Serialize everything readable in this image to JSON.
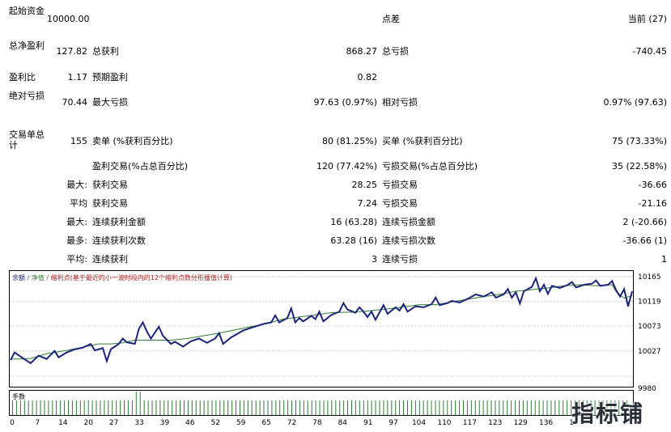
{
  "report": {
    "initial_deposit_label": "起始资金",
    "initial_deposit_value": "10000.00",
    "spread_label": "点差",
    "spread_value": "当前 (27)",
    "net_profit_label": "总净盈利",
    "net_profit_value": "127.82",
    "gross_profit_label": "总获利",
    "gross_profit_value": "868.27",
    "gross_loss_label": "总亏损",
    "gross_loss_value": "-740.45",
    "profit_factor_label": "盈利比",
    "profit_factor_value": "1.17",
    "expected_payoff_label": "预期盈利",
    "expected_payoff_value": "0.82",
    "abs_drawdown_label": "绝对亏损",
    "abs_drawdown_value": "70.44",
    "max_drawdown_label": "最大亏损",
    "max_drawdown_value": "97.63 (0.97%)",
    "rel_drawdown_label": "相对亏损",
    "rel_drawdown_value": "0.97% (97.63)",
    "total_trades_label": "交易单总计",
    "total_trades_value": "155",
    "short_label": "卖单 (%获利百分比)",
    "short_value": "80 (81.25%)",
    "long_label": "买单 (%获利百分比)",
    "long_value": "75 (73.33%)",
    "profit_trades_label": "盈利交易(%占总百分比)",
    "profit_trades_value": "120 (77.42%)",
    "loss_trades_label": "亏损交易(%占总百分比)",
    "loss_trades_value": "35 (22.58%)",
    "largest_label": "最大:",
    "largest_profit_label": "获利交易",
    "largest_profit_value": "28.25",
    "largest_loss_label": "亏损交易",
    "largest_loss_value": "-36.66",
    "average_label": "平均",
    "average_profit_label": "获利交易",
    "average_profit_value": "7.24",
    "average_loss_label": "亏损交易",
    "average_loss_value": "-21.16",
    "max_cons_label": "最大:",
    "max_cons_wins_label": "连续获利金额",
    "max_cons_wins_value": "16 (63.28)",
    "max_cons_losses_label": "连续亏损金额",
    "max_cons_losses_value": "2 (-20.66)",
    "max_cons_count_label": "最多:",
    "max_cons_profit_label": "连续获利次数",
    "max_cons_profit_value": "63.28 (16)",
    "max_cons_loss_label": "连续亏损次数",
    "max_cons_loss_value": "-36.66 (1)",
    "avg_cons_label": "平均:",
    "avg_cons_wins_label": "连续获利",
    "avg_cons_wins_value": "3",
    "avg_cons_losses_label": "连续亏损",
    "avg_cons_losses_value": "1"
  },
  "chart": {
    "legend_balance": "余额",
    "legend_equity": "净值",
    "legend_note": "缩利点(基于最近的小一波时段内的12个缩利点数分形播值计算)",
    "volume_label": "手数",
    "watermark": "指标铺",
    "colors": {
      "balance": "#1a237e",
      "equity": "#2e7d32",
      "grid": "#c8c8c8"
    }
  },
  "chart_data": {
    "type": "line",
    "y_ticks": [
      "10165",
      "10119",
      "10073",
      "10027",
      "9980"
    ],
    "ylim": [
      9980,
      10165
    ],
    "x_ticks": [
      "0",
      "7",
      "14",
      "20",
      "27",
      "33",
      "39",
      "46",
      "52",
      "59",
      "65",
      "72",
      "78",
      "84",
      "91",
      "97",
      "104",
      "110",
      "117",
      "123",
      "129",
      "136",
      "1"
    ],
    "xlim": [
      0,
      155
    ],
    "balance_points": [
      [
        0,
        10012
      ],
      [
        2,
        10012
      ],
      [
        5,
        10013
      ],
      [
        9,
        10022
      ],
      [
        14,
        10028
      ],
      [
        18,
        10034
      ],
      [
        22,
        10040
      ],
      [
        25,
        10040
      ],
      [
        28,
        10042
      ],
      [
        31,
        10047
      ],
      [
        36,
        10047
      ],
      [
        40,
        10047
      ],
      [
        44,
        10050
      ],
      [
        48,
        10055
      ],
      [
        52,
        10060
      ],
      [
        56,
        10066
      ],
      [
        60,
        10072
      ],
      [
        64,
        10078
      ],
      [
        68,
        10086
      ],
      [
        72,
        10090
      ],
      [
        75,
        10093
      ],
      [
        80,
        10098
      ],
      [
        84,
        10099
      ],
      [
        86,
        10099
      ],
      [
        90,
        10102
      ],
      [
        94,
        10105
      ],
      [
        98,
        10109
      ],
      [
        102,
        10113
      ],
      [
        106,
        10113
      ],
      [
        110,
        10118
      ],
      [
        114,
        10123
      ],
      [
        118,
        10128
      ],
      [
        122,
        10132
      ],
      [
        126,
        10138
      ],
      [
        130,
        10141
      ],
      [
        134,
        10144
      ],
      [
        138,
        10148
      ],
      [
        142,
        10150
      ],
      [
        146,
        10148
      ],
      [
        150,
        10150
      ],
      [
        151,
        10137
      ],
      [
        153,
        10125
      ],
      [
        155,
        10130
      ]
    ],
    "equity_points": [
      [
        0,
        10010
      ],
      [
        1,
        10024
      ],
      [
        3,
        10014
      ],
      [
        5,
        10004
      ],
      [
        7,
        10018
      ],
      [
        9,
        10012
      ],
      [
        11,
        10027
      ],
      [
        12,
        10015
      ],
      [
        14,
        10024
      ],
      [
        16,
        10030
      ],
      [
        18,
        10033
      ],
      [
        20,
        10040
      ],
      [
        21,
        10028
      ],
      [
        23,
        10032
      ],
      [
        24,
        10008
      ],
      [
        25,
        10030
      ],
      [
        27,
        10040
      ],
      [
        28,
        10050
      ],
      [
        29,
        10043
      ],
      [
        31,
        10040
      ],
      [
        32,
        10068
      ],
      [
        33,
        10080
      ],
      [
        34,
        10063
      ],
      [
        35,
        10050
      ],
      [
        37,
        10072
      ],
      [
        38,
        10055
      ],
      [
        40,
        10040
      ],
      [
        41,
        10044
      ],
      [
        43,
        10035
      ],
      [
        45,
        10045
      ],
      [
        47,
        10050
      ],
      [
        49,
        10042
      ],
      [
        51,
        10050
      ],
      [
        52,
        10060
      ],
      [
        53,
        10040
      ],
      [
        55,
        10052
      ],
      [
        58,
        10065
      ],
      [
        60,
        10070
      ],
      [
        63,
        10077
      ],
      [
        65,
        10080
      ],
      [
        66,
        10093
      ],
      [
        67,
        10080
      ],
      [
        69,
        10088
      ],
      [
        70,
        10106
      ],
      [
        71,
        10080
      ],
      [
        72,
        10088
      ],
      [
        73,
        10082
      ],
      [
        75,
        10092
      ],
      [
        76,
        10086
      ],
      [
        77,
        10100
      ],
      [
        78,
        10082
      ],
      [
        80,
        10094
      ],
      [
        82,
        10100
      ],
      [
        83,
        10116
      ],
      [
        84,
        10104
      ],
      [
        86,
        10098
      ],
      [
        87,
        10108
      ],
      [
        88,
        10100
      ],
      [
        89,
        10090
      ],
      [
        90,
        10100
      ],
      [
        91,
        10085
      ],
      [
        93,
        10112
      ],
      [
        94,
        10096
      ],
      [
        96,
        10108
      ],
      [
        97,
        10102
      ],
      [
        98,
        10114
      ],
      [
        99,
        10100
      ],
      [
        101,
        10110
      ],
      [
        103,
        10108
      ],
      [
        105,
        10114
      ],
      [
        106,
        10126
      ],
      [
        107,
        10112
      ],
      [
        109,
        10116
      ],
      [
        110,
        10120
      ],
      [
        112,
        10117
      ],
      [
        114,
        10124
      ],
      [
        116,
        10132
      ],
      [
        118,
        10128
      ],
      [
        120,
        10136
      ],
      [
        121,
        10126
      ],
      [
        123,
        10132
      ],
      [
        124,
        10142
      ],
      [
        125,
        10126
      ],
      [
        126,
        10136
      ],
      [
        127,
        10115
      ],
      [
        128,
        10138
      ],
      [
        130,
        10146
      ],
      [
        131,
        10162
      ],
      [
        132,
        10138
      ],
      [
        133,
        10150
      ],
      [
        134,
        10133
      ],
      [
        135,
        10148
      ],
      [
        137,
        10144
      ],
      [
        139,
        10150
      ],
      [
        140,
        10155
      ],
      [
        141,
        10145
      ],
      [
        143,
        10150
      ],
      [
        145,
        10152
      ],
      [
        146,
        10158
      ],
      [
        147,
        10148
      ],
      [
        149,
        10150
      ],
      [
        150,
        10157
      ],
      [
        151,
        10140
      ],
      [
        152,
        10128
      ],
      [
        153,
        10142
      ],
      [
        154,
        10110
      ],
      [
        155,
        10138
      ]
    ]
  }
}
